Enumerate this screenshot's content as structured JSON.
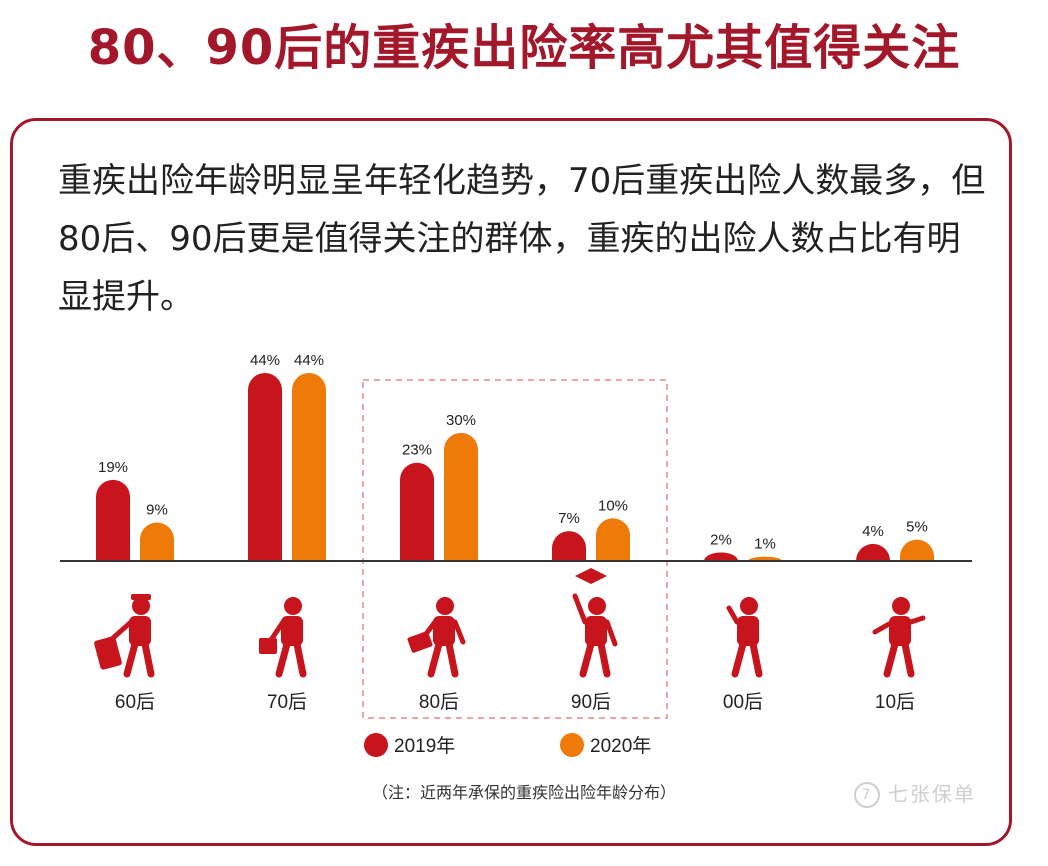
{
  "title": "80、90后的重疾出险率高尤其值得关注",
  "description": "重疾出险年龄明显呈年轻化趋势，70后重疾出险人数最多，但80后、90后更是值得关注的群体，重疾的出险人数占比有明显提升。",
  "footnote": "（注：近两年承保的重疾险出险年龄分布）",
  "brand": "七张保单",
  "brand_mark": "7",
  "colors": {
    "c2019": "#c8141c",
    "c2020": "#ee7a0a",
    "accent": "#a3172a",
    "highlight_box": "#e58a8a"
  },
  "chart_data": {
    "type": "bar",
    "categories": [
      "60后",
      "70后",
      "80后",
      "90后",
      "00后",
      "10后"
    ],
    "series": [
      {
        "name": "2019年",
        "values": [
          19,
          44,
          23,
          7,
          2,
          4
        ],
        "labels": [
          "19%",
          "44%",
          "23%",
          "7%",
          "2%",
          "4%"
        ]
      },
      {
        "name": "2020年",
        "values": [
          9,
          44,
          30,
          10,
          1,
          5
        ],
        "labels": [
          "9%",
          "44%",
          "30%",
          "10%",
          "1%",
          "5%"
        ]
      }
    ],
    "highlighted_categories": [
      "80后",
      "90后"
    ],
    "icons": [
      "elderly-traveler-icon",
      "walking-with-cane-icon",
      "businessman-walking-icon",
      "graduate-icon",
      "child-icon",
      "running-kid-icon"
    ],
    "ylim": [
      0,
      44
    ],
    "legend_position": "bottom-center",
    "xlabel": "",
    "ylabel": ""
  }
}
